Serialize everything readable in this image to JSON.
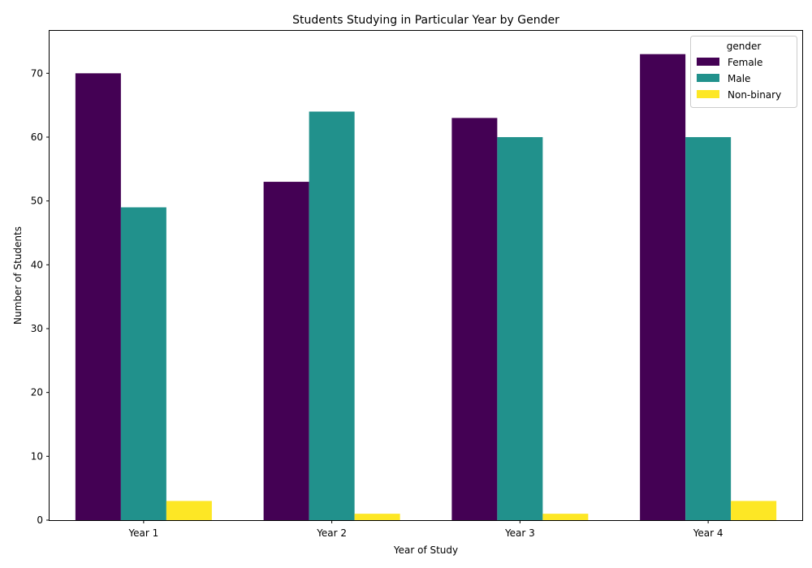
{
  "chart_data": {
    "type": "bar",
    "title": "Students Studying in Particular Year by Gender",
    "xlabel": "Year of Study",
    "ylabel": "Number of Students",
    "categories": [
      "Year 1",
      "Year 2",
      "Year 3",
      "Year 4"
    ],
    "series": [
      {
        "name": "Female",
        "color": "#440154",
        "values": [
          70,
          53,
          63,
          73
        ]
      },
      {
        "name": "Male",
        "color": "#21918c",
        "values": [
          49,
          64,
          60,
          60
        ]
      },
      {
        "name": "Non-binary",
        "color": "#fde725",
        "values": [
          3,
          1,
          1,
          3
        ]
      }
    ],
    "ylim": [
      0,
      76.65
    ],
    "yticks": [
      "0",
      "10",
      "20",
      "30",
      "40",
      "50",
      "60",
      "70"
    ],
    "legend": {
      "title": "gender",
      "placement": "top-right"
    },
    "grid": false
  }
}
